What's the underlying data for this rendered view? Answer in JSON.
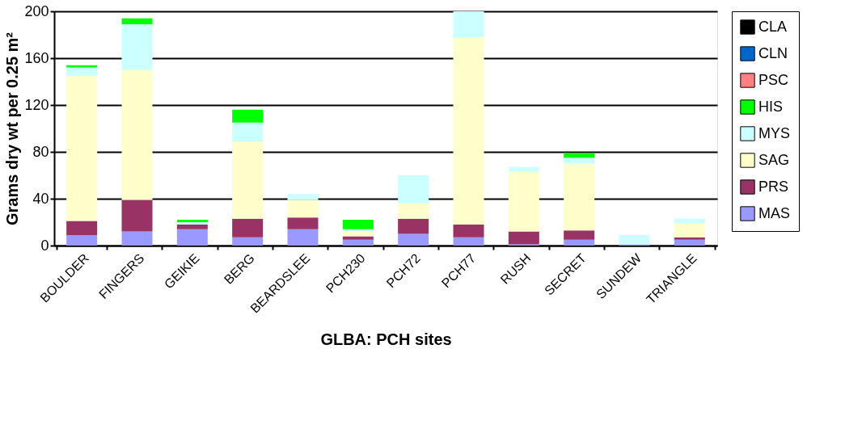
{
  "chart_data": {
    "type": "bar",
    "stacked": true,
    "xlabel": "GLBA:  PCH sites",
    "ylabel": "Grams dry wt per 0.25 m²",
    "categories": [
      "BOULDER",
      "FINGERS",
      "GEIKIE",
      "BERG",
      "BEARDSLEE",
      "PCH230",
      "PCH72",
      "PCH77",
      "RUSH",
      "SECRET",
      "SUNDEW",
      "TRIANGLE"
    ],
    "series": [
      {
        "name": "MAS",
        "color": "#9999ff",
        "values": [
          9,
          12,
          14,
          7,
          14,
          5,
          10,
          7,
          1,
          5,
          1,
          5
        ]
      },
      {
        "name": "PRS",
        "color": "#993366",
        "values": [
          12,
          27,
          4,
          16,
          10,
          3,
          13,
          11,
          11,
          8,
          0,
          2
        ]
      },
      {
        "name": "SAG",
        "color": "#ffffcc",
        "values": [
          124,
          111,
          0,
          66,
          15,
          4,
          13,
          160,
          51,
          57,
          0,
          12
        ]
      },
      {
        "name": "MYS",
        "color": "#ccffff",
        "values": [
          7,
          39,
          2,
          16,
          5,
          2,
          24,
          22,
          4,
          5,
          8,
          4
        ]
      },
      {
        "name": "HIS",
        "color": "#00ff00",
        "values": [
          2,
          5,
          2,
          11,
          0,
          8,
          0,
          0,
          0,
          4,
          0,
          0
        ]
      },
      {
        "name": "PSC",
        "color": "#ff8080",
        "values": [
          0,
          0,
          0,
          0,
          0,
          0,
          0,
          0,
          0,
          0,
          0,
          0
        ]
      },
      {
        "name": "CLN",
        "color": "#0066cc",
        "values": [
          0,
          0,
          0,
          0,
          0,
          0,
          0,
          0,
          0,
          0,
          0,
          0
        ]
      },
      {
        "name": "CLA",
        "color": "#000000",
        "values": [
          0,
          0,
          0,
          0,
          0,
          0,
          0,
          0,
          0,
          0,
          0,
          0
        ]
      }
    ],
    "ylim": [
      0,
      200
    ],
    "yticks": [
      0,
      40,
      80,
      120,
      160,
      200
    ],
    "grid": "y",
    "legend": "right"
  }
}
